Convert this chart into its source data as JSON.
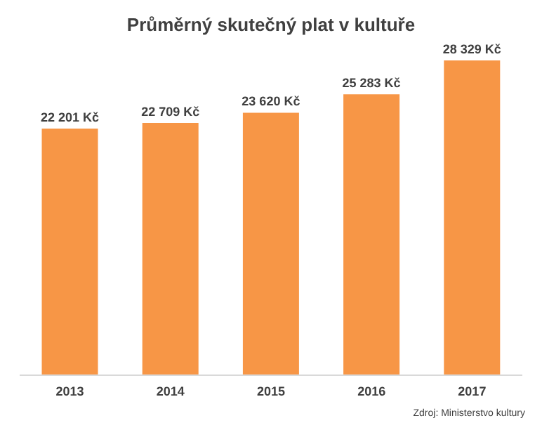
{
  "chart_data": {
    "type": "bar",
    "title": "Průměrný skutečný plat v kultuře",
    "categories": [
      "2013",
      "2014",
      "2015",
      "2016",
      "2017"
    ],
    "values": [
      22201,
      22709,
      23620,
      25283,
      28329
    ],
    "value_labels": [
      "22 201 Kč",
      "22 709 Kč",
      "23 620 Kč",
      "25 283 Kč",
      "28 329 Kč"
    ],
    "color": "#f79646",
    "grid": false,
    "annotations": [
      "Zdroj: Ministerstvo kultury"
    ]
  }
}
